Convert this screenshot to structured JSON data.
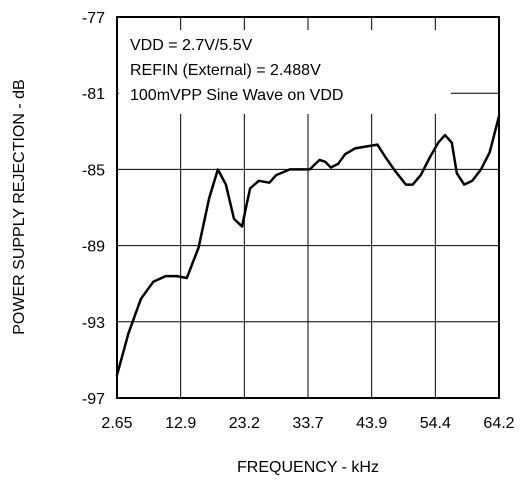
{
  "chart_data": {
    "type": "line",
    "title": "",
    "xlabel": "FREQUENCY - kHz",
    "ylabel": "POWER SUPPLY REJECTION - dB",
    "x_tick_labels": [
      "2.65",
      "12.9",
      "23.2",
      "33.7",
      "43.9",
      "54.4",
      "64.2"
    ],
    "y_tick_labels": [
      "-77",
      "-81",
      "-85",
      "-89",
      "-93",
      "-97"
    ],
    "xlim": [
      2.65,
      64.2
    ],
    "ylim": [
      -97,
      -77
    ],
    "grid": true,
    "annotations": [
      "VDD = 2.7V/5.5V",
      "REFIN (External) = 2.488V",
      "100mVPP Sine Wave on VDD"
    ],
    "series": [
      {
        "x": [
          2.65,
          4.5,
          6.5,
          8.5,
          10.5,
          12.3,
          13.9,
          15.8,
          17.5,
          18.9,
          20.2,
          21.5,
          22.8,
          23.5,
          24.1,
          25.5,
          27.2,
          28.3,
          30.5,
          32.0,
          33.7,
          35.3,
          36.2,
          37.1,
          38.3,
          39.4,
          41.0,
          42.8,
          44.6,
          46.0,
          47.5,
          49.2,
          50.3,
          51.6,
          53.0,
          54.4,
          55.5,
          56.6,
          57.4,
          58.6,
          59.9,
          61.3,
          62.7,
          64.2
        ],
        "y": [
          -95.8,
          -93.6,
          -91.8,
          -90.9,
          -90.6,
          -90.6,
          -90.7,
          -89.1,
          -86.5,
          -85.0,
          -85.8,
          -87.6,
          -88.0,
          -86.9,
          -86.0,
          -85.6,
          -85.7,
          -85.3,
          -85.0,
          -85.0,
          -85.0,
          -84.5,
          -84.6,
          -84.9,
          -84.7,
          -84.2,
          -83.9,
          -83.8,
          -83.7,
          -84.4,
          -85.1,
          -85.8,
          -85.8,
          -85.3,
          -84.4,
          -83.6,
          -83.2,
          -83.6,
          -85.2,
          -85.8,
          -85.6,
          -85.0,
          -84.1,
          -82.2
        ]
      }
    ]
  }
}
